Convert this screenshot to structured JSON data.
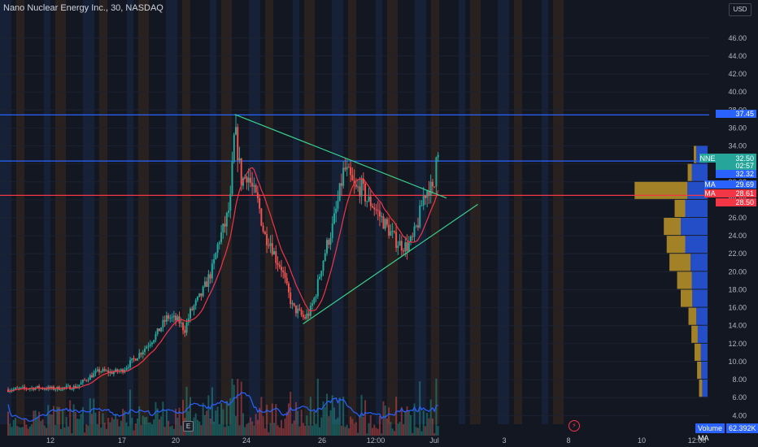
{
  "header": {
    "title": "Nano Nuclear Energy Inc., 30, NASDAQ",
    "currency": "USD"
  },
  "colors": {
    "background": "#131722",
    "up": "#26a69a",
    "down": "#ef5350",
    "ma": "#f23645",
    "volume_ma": "#2962ff",
    "trendline": "#3ad08d",
    "level_blue": "#2962ff",
    "level_red": "#f23645",
    "session_blue": "#1a2a48",
    "session_orange": "#3a2a1e",
    "vp_up": "#d4a62a",
    "vp_down": "#2962ff"
  },
  "chart_data": {
    "type": "candlestick",
    "title": "Nano Nuclear Energy Inc., 30, NASDAQ",
    "y_axis": {
      "ticks": [
        "4.00",
        "6.00",
        "8.00",
        "10.00",
        "12.00",
        "14.00",
        "16.00",
        "18.00",
        "20.00",
        "22.00",
        "24.00",
        "26.00",
        "28.00",
        "30.00",
        "32.00",
        "34.00",
        "36.00",
        "38.00",
        "40.00",
        "42.00",
        "44.00",
        "46.00"
      ],
      "range": [
        3.4,
        48.6
      ]
    },
    "x_axis": {
      "labels": [
        "12",
        "17",
        "20",
        "24",
        "26",
        "12:00",
        "Jul",
        "3",
        "8",
        "10",
        "12:00"
      ],
      "range": [
        0,
        100
      ]
    },
    "price_trajectory": [
      [
        0,
        6.9
      ],
      [
        5,
        7.1
      ],
      [
        8,
        7.0
      ],
      [
        12,
        7.2
      ],
      [
        14,
        8.2
      ],
      [
        16,
        9.0
      ],
      [
        18,
        8.8
      ],
      [
        20,
        9.0
      ],
      [
        22,
        10.2
      ],
      [
        24,
        11.5
      ],
      [
        26,
        13.0
      ],
      [
        28,
        15.0
      ],
      [
        30,
        14.5
      ],
      [
        31,
        13.5
      ],
      [
        32,
        15.5
      ],
      [
        34,
        17.5
      ],
      [
        36,
        20.5
      ],
      [
        37,
        23.5
      ],
      [
        38,
        25.0
      ],
      [
        39,
        27.5
      ],
      [
        39.8,
        36.0
      ],
      [
        40.5,
        32.5
      ],
      [
        41,
        30.0
      ],
      [
        42,
        31.0
      ],
      [
        43,
        29.0
      ],
      [
        44,
        27.5
      ],
      [
        45,
        24.0
      ],
      [
        46,
        23.5
      ],
      [
        47,
        21.5
      ],
      [
        48,
        20.5
      ],
      [
        49,
        18.0
      ],
      [
        50,
        16.0
      ],
      [
        51,
        15.5
      ],
      [
        52,
        14.8
      ],
      [
        53,
        15.5
      ],
      [
        54,
        17.5
      ],
      [
        55,
        20.5
      ],
      [
        56,
        23.0
      ],
      [
        57,
        25.0
      ],
      [
        58,
        28.0
      ],
      [
        59,
        31.5
      ],
      [
        60,
        30.5
      ],
      [
        61,
        29.0
      ],
      [
        62,
        29.5
      ],
      [
        63,
        28.0
      ],
      [
        64,
        27.5
      ],
      [
        65,
        26.5
      ],
      [
        66,
        25.5
      ],
      [
        67,
        24.5
      ],
      [
        68,
        23.5
      ],
      [
        69,
        23.0
      ],
      [
        70,
        22.8
      ],
      [
        71,
        23.5
      ],
      [
        72,
        25.5
      ],
      [
        73,
        28.5
      ],
      [
        74,
        29.5
      ],
      [
        74.8,
        28.5
      ],
      [
        75.3,
        35.0
      ],
      [
        75.8,
        32.5
      ]
    ],
    "moving_average": {
      "label": "MA",
      "value": "29.69"
    },
    "volume_ma": {
      "label": "Volume MA",
      "value": "62.392K"
    },
    "price_tags": [
      {
        "id": "level_top",
        "value": "37.45",
        "color": "#2962ff"
      },
      {
        "id": "last",
        "symbol": "NNE",
        "value": "32.50",
        "countdown": "02:57",
        "color": "#26a69a"
      },
      {
        "id": "level_mid",
        "value": "32.32",
        "color": "#2962ff"
      },
      {
        "id": "ma",
        "label": "MA",
        "value": "29.69",
        "color": "#2962ff"
      },
      {
        "id": "ma2",
        "label": "MA",
        "value": "28.61",
        "color": "#f23645"
      },
      {
        "id": "level_red",
        "value": "28.50",
        "color": "#f23645"
      }
    ],
    "horizontal_levels": [
      {
        "price": 37.45,
        "color": "#2962ff"
      },
      {
        "price": 32.32,
        "color": "#2962ff"
      },
      {
        "price": 28.5,
        "color": "#f23645"
      }
    ],
    "trendlines": [
      {
        "from": [
          39.8,
          37.5
        ],
        "to": [
          77,
          28.2
        ]
      },
      {
        "from": [
          51.8,
          14.2
        ],
        "to": [
          82.5,
          27.5
        ]
      }
    ],
    "volume_profile": [
      {
        "price": 33.0,
        "up": 0.05,
        "down": 0.25
      },
      {
        "price": 31.0,
        "up": 0.08,
        "down": 0.35
      },
      {
        "price": 29.0,
        "up": 1.0,
        "down": 0.45
      },
      {
        "price": 27.0,
        "up": 0.2,
        "down": 0.5
      },
      {
        "price": 25.0,
        "up": 0.32,
        "down": 0.6
      },
      {
        "price": 23.0,
        "up": 0.35,
        "down": 0.5
      },
      {
        "price": 21.0,
        "up": 0.4,
        "down": 0.38
      },
      {
        "price": 19.0,
        "up": 0.28,
        "down": 0.35
      },
      {
        "price": 17.0,
        "up": 0.22,
        "down": 0.34
      },
      {
        "price": 15.0,
        "up": 0.15,
        "down": 0.25
      },
      {
        "price": 13.0,
        "up": 0.12,
        "down": 0.22
      },
      {
        "price": 11.0,
        "up": 0.12,
        "down": 0.15
      },
      {
        "price": 9.0,
        "up": 0.08,
        "down": 0.14
      },
      {
        "price": 7.0,
        "up": 0.06,
        "down": 0.12
      }
    ]
  }
}
